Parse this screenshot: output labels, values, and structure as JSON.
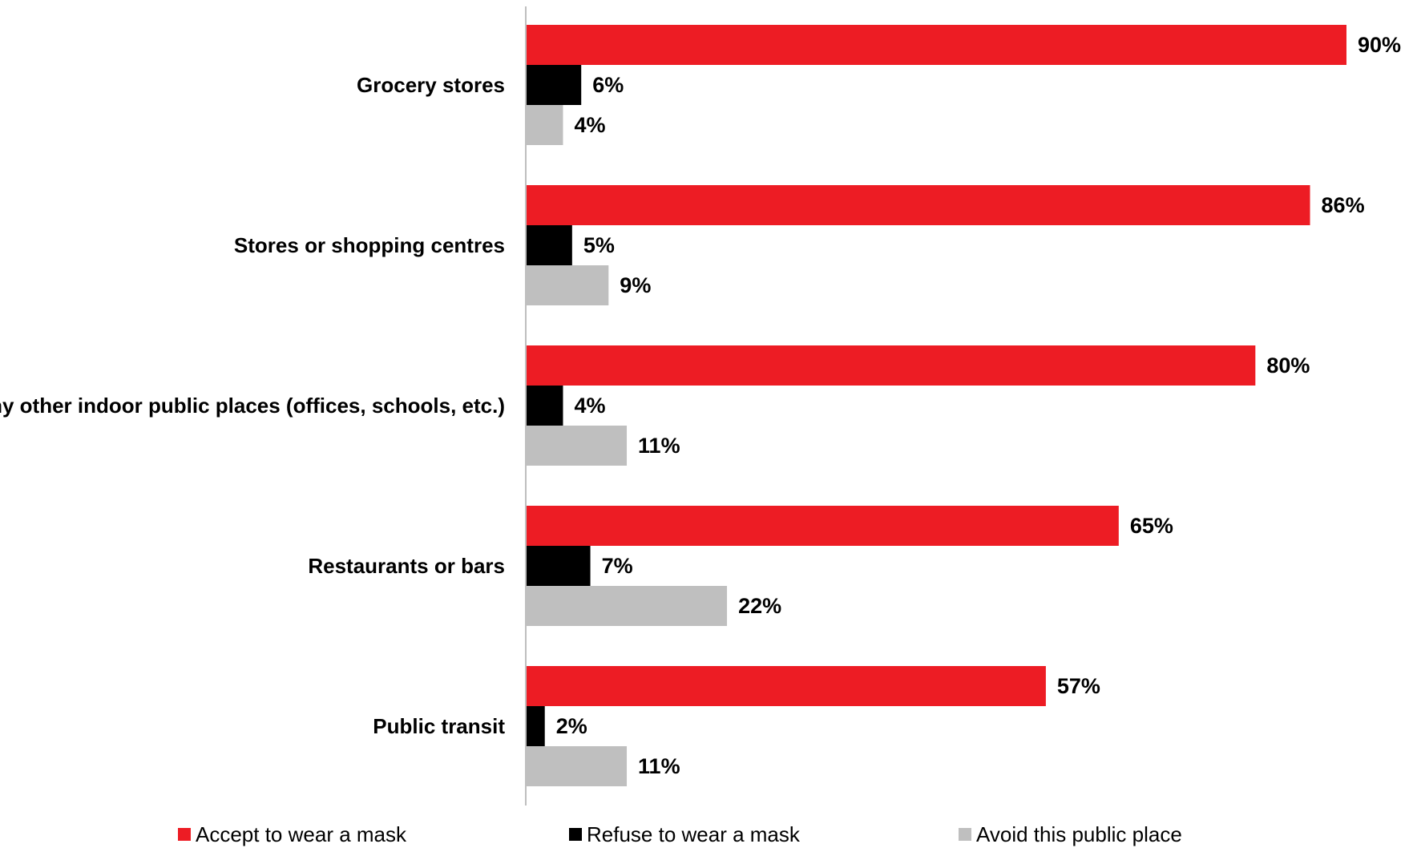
{
  "chart_data": {
    "type": "bar",
    "orientation": "horizontal",
    "categories": [
      "Grocery stores",
      "Stores or shopping centres",
      "Any other indoor public places (offices, schools, etc.)",
      "Restaurants or bars",
      "Public transit"
    ],
    "series": [
      {
        "name": "Accept to wear a mask",
        "color": "#ed1c24",
        "values": [
          90,
          86,
          80,
          65,
          57
        ]
      },
      {
        "name": "Refuse to wear a mask",
        "color": "#000000",
        "values": [
          6,
          5,
          4,
          7,
          2
        ]
      },
      {
        "name": "Avoid this public place",
        "color": "#bfbfbf",
        "values": [
          4,
          9,
          11,
          22,
          11
        ]
      }
    ],
    "value_suffix": "%",
    "xlim": [
      0,
      100
    ],
    "grid": false,
    "legend_position": "bottom"
  }
}
